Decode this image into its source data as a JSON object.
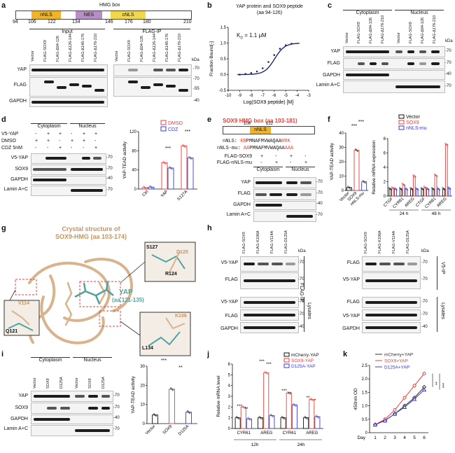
{
  "panels": {
    "a": {
      "letter": "a",
      "domain_title": "HMG box",
      "domains": [
        "nNLS",
        "NES",
        "cNLS"
      ],
      "ticks": [
        "94",
        "106",
        "122",
        "134",
        "146",
        "176",
        "180",
        "210"
      ],
      "input_title": "Input",
      "ip_title": "FLAG-IP",
      "lanes": [
        "Vector",
        "FLAG-SOX9",
        "FLAG-Δ94-126",
        "FLAG-Δ126-144",
        "FLAG-Δ146-176",
        "FLAG-Δ176-210"
      ],
      "rows": [
        "YAP",
        "FLAG",
        "GAPDH"
      ],
      "kda": [
        "kDa",
        "-70",
        "-70",
        "-55",
        "-40"
      ]
    },
    "b": {
      "letter": "b",
      "title_1": "YAP protein and SOX9 peptide",
      "title_2": "(aa 94-126)",
      "kd": "K",
      "kd_sub": "D",
      "kd_value": "= 1.1 μM"
    },
    "c": {
      "letter": "c",
      "groups": [
        "Cytoplasm",
        "Nucleus"
      ],
      "lanes": [
        "Vector",
        "FLAG-SOX9",
        "FLAG-Δ94-126",
        "FLAG-Δ176-210"
      ],
      "rows": [
        "YAP",
        "FLAG",
        "GAPDH",
        "Lamin A+C"
      ],
      "kda": [
        "kDa",
        "-70",
        "-70",
        "-40",
        "-70"
      ]
    },
    "d": {
      "letter": "d",
      "groups": [
        "Cytoplasm",
        "Nucleus"
      ],
      "cond_rows": [
        "V5-YAP",
        "DMSO",
        "CDZ 5nM"
      ],
      "cond_vals": [
        [
          "-",
          "+",
          "+",
          "-",
          "+",
          "+"
        ],
        [
          "+",
          "+",
          "-",
          "+",
          "+",
          "-"
        ],
        [
          "-",
          "-",
          "+",
          "-",
          "-",
          "+"
        ]
      ],
      "rows": [
        "V5-YAP",
        "SOX9",
        "GAPDH",
        "Lamin A+C"
      ],
      "kda": [
        "-70",
        "-70",
        "-40",
        "-70"
      ],
      "legend": [
        "DMSO",
        "CDZ"
      ],
      "sig": [
        "***",
        "***"
      ]
    },
    "e": {
      "letter": "e",
      "title": "SOX9 HMG box (aa 103-181)",
      "domain": "nNLS",
      "ticks": [
        "106",
        "122"
      ],
      "seq_wt_label": "nNLS:",
      "seq_wt_red": "KR",
      "seq_wt_mid": "PMNAFMVWAQAA",
      "seq_wt_end": "RRK",
      "seq_mu_label": "nNLS-mu:",
      "seq_mu_red": "AA",
      "seq_mu_mid": "PMNAFMVWAQAA",
      "seq_mu_end": "AAA",
      "cond_rows": [
        "FLAG-SOX9",
        "FLAG-nNLS-mu"
      ],
      "cond_vals": [
        [
          "+",
          "-",
          "+",
          "-"
        ],
        [
          "-",
          "+",
          "-",
          "+"
        ]
      ],
      "groups": [
        "Cytoplasm",
        "Nucleus"
      ],
      "rows": [
        "YAP",
        "FLAG",
        "GAPDH",
        "Lamin A+C"
      ],
      "kda": [
        "-70",
        "-70",
        "-40",
        "-70"
      ]
    },
    "f": {
      "letter": "f",
      "legend": [
        "Vector",
        "SOX9",
        "nNLS-mu"
      ],
      "sig_left": [
        "***",
        "***"
      ],
      "times": [
        "24 h",
        "48 h"
      ]
    },
    "g": {
      "letter": "g",
      "title_1": "Crystal structure of",
      "title_2": "SOX9-HMG (aa 103-174)",
      "yap_1": "YAP",
      "yap_2": "(aa 121-135)",
      "res_s127": "S127",
      "res_d125": "D125",
      "res_r124": "R124",
      "res_v114": "V114",
      "res_q121": "Q121",
      "res_k106": "K106",
      "res_l134": "L134"
    },
    "h": {
      "letter": "h",
      "lanes_left": [
        "FLAG-SOX9",
        "FLAG-K106A",
        "FLAG-V114A",
        "FLAG-D125A"
      ],
      "rows_left": [
        "V5-YAP",
        "FLAG",
        "V5-YAP",
        "FLAG",
        "GAPDH"
      ],
      "lanes_right": [
        "FLAG-SOX9",
        "FLAG-K106A",
        "FLAG-V114A",
        "FLAG-D125A"
      ],
      "rows_right": [
        "FLAG",
        "V5-YAP",
        "FLAG",
        "V5-YAP",
        "GAPDH"
      ],
      "ip_left": "FLAG-IP",
      "ip_right": "V5-IP",
      "lysates": "Lysates",
      "kda": [
        "kDa",
        "-70",
        "-70",
        "-70",
        "-70",
        "-40"
      ]
    },
    "i": {
      "letter": "i",
      "groups": [
        "Cytoplasm",
        "Nucleus"
      ],
      "lanes": [
        "Vector",
        "SOX9",
        "D125A"
      ],
      "rows": [
        "YAP",
        "SOX9",
        "GAPDH",
        "Lamin A+C"
      ],
      "kda": [
        "-70",
        "-70",
        "-40",
        "-70"
      ],
      "sig": [
        "***",
        "**"
      ]
    },
    "j": {
      "letter": "j",
      "legend": [
        "mCherry-YAP",
        "SOX9-YAP",
        "D125A-YAP"
      ],
      "times": [
        "12h",
        "24h"
      ],
      "sig": [
        "***",
        "**",
        "***",
        "***",
        "***",
        "**",
        "**",
        "*"
      ]
    },
    "k": {
      "letter": "k",
      "legend": [
        "mCherry+YAP",
        "SOX9+YAP",
        "D125A+YAP"
      ],
      "sig": [
        "**",
        "***"
      ]
    }
  },
  "colors": {
    "dark_blue": "#1f2a6e",
    "red": "#e8403a",
    "blue": "#3a3ad0",
    "gray": "#555555",
    "nnls_orange": "#f0b429",
    "nes_purple": "#b88ec6",
    "cnls_yellow": "#f0d84a",
    "protein_tan": "#d9b38c",
    "peptide_teal": "#4fa3a0"
  },
  "chart_data": [
    {
      "panel": "b",
      "type": "scatter",
      "title": "YAP protein and SOX9 peptide (aa 94-126)",
      "xlabel": "Log(SOX9 peptide) [M]",
      "ylabel": "Fraction Bound[-]",
      "xlim": [
        -10.0,
        -3.0
      ],
      "ylim": [
        -0.5,
        1.5
      ],
      "xticks": [
        "-10",
        "-9",
        "-8",
        "-7",
        "-6",
        "-5",
        "-4",
        "-3"
      ],
      "yticks": [
        "-0.5",
        "0.0",
        "0.5",
        "1.0",
        "1.5"
      ],
      "x": [
        -9.0,
        -8.5,
        -8.0,
        -7.5,
        -7.0,
        -6.5,
        -6.0,
        -5.5,
        -5.0,
        -4.5
      ],
      "y": [
        0.0,
        0.02,
        0.05,
        0.1,
        0.2,
        0.4,
        0.62,
        0.82,
        0.93,
        0.98
      ]
    },
    {
      "panel": "d",
      "type": "bar",
      "ylabel": "YAP-TEAD activity",
      "categories": [
        "Ctrl",
        "YAP",
        "S127A"
      ],
      "series": [
        {
          "name": "DMSO",
          "values": [
            3,
            55,
            90
          ]
        },
        {
          "name": "CDZ",
          "values": [
            4,
            44,
            65
          ]
        }
      ],
      "ylim": [
        0,
        120
      ],
      "yticks": [
        "0",
        "40",
        "80",
        "120"
      ]
    },
    {
      "panel": "f-left",
      "type": "bar",
      "ylabel": "YAP-TEAD activity",
      "categories": [
        "Vector",
        "SOX9",
        "nNLS-mu"
      ],
      "values": [
        2,
        28,
        6
      ],
      "ylim": [
        0,
        40
      ],
      "yticks": [
        "0",
        "10",
        "20",
        "30",
        "40"
      ]
    },
    {
      "panel": "f-right",
      "type": "bar",
      "ylabel": "Relative mRNA expression",
      "categories": [
        "CTGF",
        "CYR61",
        "AREG",
        "CTGF",
        "CYR61",
        "AREG"
      ],
      "series": [
        {
          "name": "Vector",
          "values": [
            1,
            1,
            1,
            1,
            1,
            1
          ]
        },
        {
          "name": "SOX9",
          "values": [
            1.1,
            1.6,
            2.8,
            1.2,
            2.9,
            7.2
          ]
        },
        {
          "name": "nNLS-mu",
          "values": [
            1,
            1,
            1,
            1,
            1,
            1.1
          ]
        }
      ],
      "ylim": [
        0,
        8
      ],
      "yticks": [
        "0",
        "2",
        "4",
        "6",
        "8"
      ]
    },
    {
      "panel": "i",
      "type": "bar",
      "ylabel": "YAP-TEAD activity",
      "categories": [
        "Vector",
        "SOX9",
        "D125A"
      ],
      "values": [
        4.5,
        18,
        6
      ],
      "ylim": [
        0,
        30
      ],
      "yticks": [
        "0",
        "10",
        "20",
        "30"
      ]
    },
    {
      "panel": "j",
      "type": "bar",
      "ylabel": "Relative mRNA level",
      "categories": [
        "CYR61",
        "AREG",
        "CYR61",
        "AREG"
      ],
      "series": [
        {
          "name": "mCherry-YAP",
          "values": [
            1,
            1,
            1,
            1
          ]
        },
        {
          "name": "SOX9-YAP",
          "values": [
            2,
            5.2,
            3.3,
            2.7
          ]
        },
        {
          "name": "D125A-YAP",
          "values": [
            0.9,
            1.2,
            2.2,
            1.1
          ]
        }
      ],
      "ylim": [
        0,
        6
      ],
      "yticks": [
        "0",
        "1",
        "2",
        "3",
        "4",
        "5",
        "6"
      ]
    },
    {
      "panel": "k",
      "type": "line",
      "ylabel": "450nm OD",
      "xlabel": "Day",
      "x": [
        1,
        2,
        3,
        4,
        5,
        6
      ],
      "series": [
        {
          "name": "mCherry+YAP",
          "values": [
            0.3,
            0.45,
            0.7,
            1.0,
            1.3,
            1.7
          ]
        },
        {
          "name": "SOX9+YAP",
          "values": [
            0.3,
            0.5,
            0.85,
            1.3,
            1.75,
            2.2
          ]
        },
        {
          "name": "D125A+YAP",
          "values": [
            0.3,
            0.45,
            0.7,
            0.95,
            1.25,
            1.6
          ]
        }
      ],
      "ylim": [
        0,
        2.5
      ],
      "yticks": [
        "0",
        "0.5",
        "1.0",
        "1.5",
        "2.0",
        "2.5"
      ]
    }
  ]
}
